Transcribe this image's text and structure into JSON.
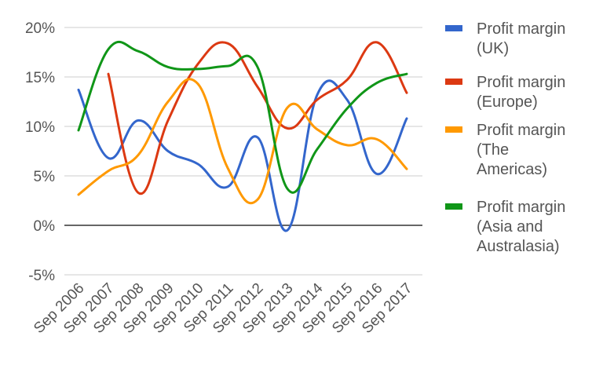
{
  "chart_data": {
    "type": "line",
    "title": "",
    "xlabel": "",
    "ylabel": "",
    "categories": [
      "Sep 2006",
      "Sep 2007",
      "Sep 2008",
      "Sep 2009",
      "Sep 2010",
      "Sep 2011",
      "Sep 2012",
      "Sep 2013",
      "Sep 2014",
      "Sep 2015",
      "Sep 2016",
      "Sep 2017"
    ],
    "y_ticks": [
      "20%",
      "15%",
      "10%",
      "5%",
      "0%",
      "-5%"
    ],
    "ylim": [
      -5,
      20
    ],
    "grid": true,
    "legend_position": "right",
    "series": [
      {
        "name": "Profit margin (UK)",
        "legend_lines": [
          "Profit margin",
          "(UK)"
        ],
        "color": "#3366cc",
        "values": [
          13.7,
          6.8,
          10.6,
          7.5,
          6.2,
          3.9,
          8.9,
          -0.5,
          13.2,
          12.7,
          5.2,
          10.8
        ]
      },
      {
        "name": "Profit margin (Europe)",
        "legend_lines": [
          "Profit margin",
          "(Europe)"
        ],
        "color": "#dc3912",
        "values": [
          null,
          15.3,
          3.3,
          10.6,
          16.3,
          18.4,
          14.0,
          9.8,
          12.7,
          14.7,
          18.5,
          13.4
        ]
      },
      {
        "name": "Profit margin (The Americas)",
        "legend_lines": [
          "Profit margin",
          "(The",
          "Americas)"
        ],
        "color": "#ff9900",
        "values": [
          3.1,
          5.5,
          7.1,
          12.5,
          14.3,
          5.8,
          2.6,
          11.9,
          9.7,
          8.1,
          8.7,
          5.7
        ]
      },
      {
        "name": "Profit margin (Asia and Australasia)",
        "legend_lines": [
          "Profit margin",
          "(Asia and",
          "Australasia)"
        ],
        "color": "#109618",
        "values": [
          9.6,
          17.8,
          17.6,
          16.0,
          15.8,
          16.1,
          16.0,
          3.7,
          7.7,
          11.8,
          14.4,
          15.3
        ]
      }
    ]
  }
}
